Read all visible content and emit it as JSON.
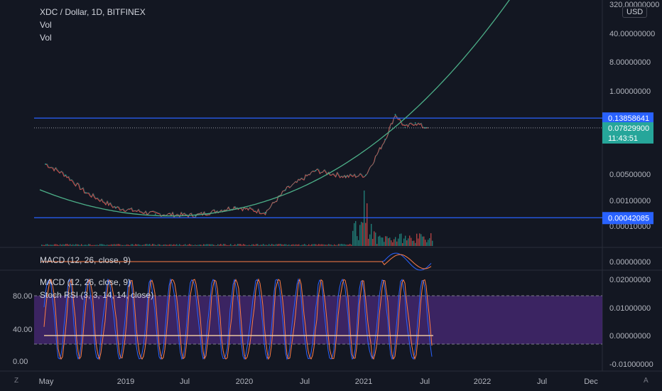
{
  "header": {
    "title": "XDC / Dollar, 1D, BITFINEX",
    "vol1": "Vol",
    "vol2": "Vol"
  },
  "price_axis": {
    "unit": "USD",
    "ticks": [
      "320.00000000",
      "40.00000000",
      "8.00000000",
      "1.00000000",
      "0.00500000",
      "0.00100000",
      "0.00010000"
    ],
    "tags": {
      "resistance": "0.13858641",
      "last": "0.07829900",
      "countdown": "11:43:51",
      "support": "0.00042085"
    }
  },
  "macd_pane": {
    "label": "MACD (12, 26, close, 9)",
    "tick": "0.00000000"
  },
  "lower_pane": {
    "label_macd": "MACD (12, 26, close, 9)",
    "label_stoch": "Stoch RSI (3, 3, 14, 14, close)",
    "right_ticks": [
      "0.02000000",
      "0.01000000",
      "0.00000000",
      "-0.01000000"
    ],
    "left_ticks": [
      "80.00",
      "40.00",
      "0.00"
    ]
  },
  "time_axis": {
    "labels": [
      "May",
      "2019",
      "Jul",
      "2020",
      "Jul",
      "2021",
      "Jul",
      "2022",
      "Jul",
      "Dec"
    ]
  },
  "buttons": {
    "z": "Z",
    "a": "A"
  },
  "colors": {
    "resistance": "#2962ff",
    "last": "#26a69a",
    "curve": "#4caf88",
    "up": "#26a69a",
    "down": "#ef5350",
    "stoch_k": "#2962ff",
    "stoch_d": "#ff7e47",
    "band": "#5b2e8a"
  },
  "chart_data": {
    "type": "line",
    "title": "XDC / Dollar, 1D, BITFINEX",
    "yscale": "log",
    "series": [
      {
        "name": "XDC / Dollar",
        "x": [
          "2018-05",
          "2018-07",
          "2018-09",
          "2018-12",
          "2019-04",
          "2019-08",
          "2019-12",
          "2020-03",
          "2020-05",
          "2020-08",
          "2020-11",
          "2021-01",
          "2021-03",
          "2021-04",
          "2021-05",
          "2021-06",
          "2021-07"
        ],
        "values": [
          0.0095,
          0.005,
          0.0018,
          0.00075,
          0.00052,
          0.00048,
          0.00078,
          0.00057,
          0.0021,
          0.0065,
          0.0046,
          0.005,
          0.04,
          0.17,
          0.08,
          0.105,
          0.078
        ]
      }
    ],
    "horizontal_levels": [
      0.13858641,
      0.00042085
    ],
    "last_price": 0.078299,
    "ylim": [
      8e-05,
      320
    ]
  }
}
